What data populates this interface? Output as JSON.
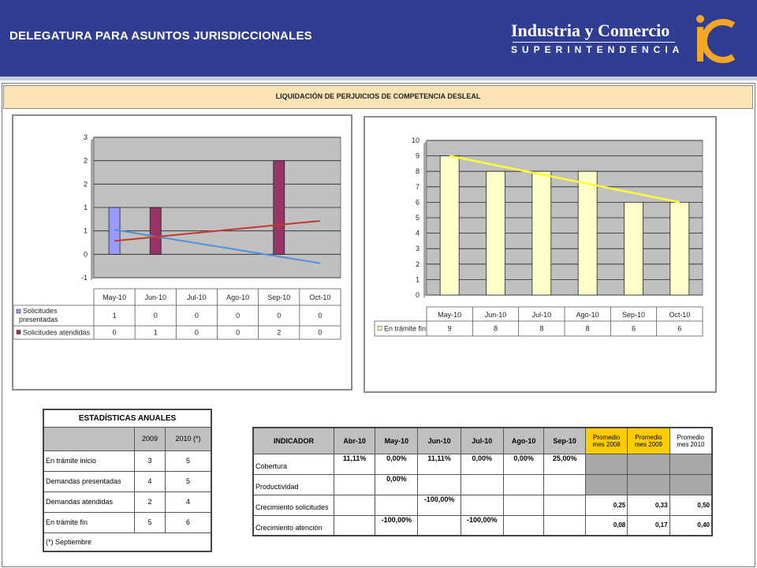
{
  "header": {
    "title": "DELEGATURA PARA ASUNTOS JURISDICCIONALES",
    "brand_line1": "Industria y Comercio",
    "brand_line2": "SUPERINTENDENCIA"
  },
  "banner_title": "LIQUIDACIÓN DE PERJUICIOS DE COMPETENCIA DESLEAL",
  "colors": {
    "header_bg": "#2f3d92",
    "plot_bg": "#c0c0c0",
    "banner_bg": "#fde4b5",
    "series_blue": "#9999ff",
    "series_maroon": "#993366",
    "series_cream": "#ffffcc",
    "trend_yellow": "#ffff33",
    "highlight": "#ffcc00"
  },
  "chart_data": [
    {
      "type": "bar",
      "categories": [
        "May-10",
        "Jun-10",
        "Jul-10",
        "Ago-10",
        "Sep-10",
        "Oct-10"
      ],
      "series": [
        {
          "name": "Solicitudes presentadas",
          "values": [
            1,
            0,
            0,
            0,
            0,
            0
          ]
        },
        {
          "name": "Solicitudes atendidas",
          "values": [
            0,
            1,
            0,
            0,
            2,
            0
          ]
        }
      ],
      "y_tick_labels": [
        "3",
        "2",
        "2",
        "1",
        "1",
        "0",
        "-1"
      ],
      "ylim": [
        -0.5,
        2.5
      ],
      "trendlines": true,
      "grid": true,
      "legend": "data-table-bottom"
    },
    {
      "type": "bar",
      "categories": [
        "May-10",
        "Jun-10",
        "Jul-10",
        "Ago-10",
        "Sep-10",
        "Oct-10"
      ],
      "series": [
        {
          "name": "En trámite fin",
          "values": [
            9,
            8,
            8,
            8,
            6,
            6
          ]
        }
      ],
      "y_tick_labels": [
        "10",
        "9",
        "8",
        "7",
        "6",
        "5",
        "4",
        "3",
        "2",
        "1",
        "0"
      ],
      "ylim": [
        0,
        10
      ],
      "trendline": true,
      "grid": true,
      "legend": "data-table-bottom"
    }
  ],
  "annual": {
    "title": "ESTADÍSTICAS ANUALES",
    "col1": "2009",
    "col2": "2010 (*)",
    "rows": [
      {
        "label": "En trámite inicio",
        "v1": "3",
        "v2": "5"
      },
      {
        "label": "Demandas presentadas",
        "v1": "4",
        "v2": "5"
      },
      {
        "label": "Demandas atendidas",
        "v1": "2",
        "v2": "4"
      },
      {
        "label": "En trámite fin",
        "v1": "5",
        "v2": "6"
      }
    ],
    "footnote": "(*) Septiembre"
  },
  "indicators": {
    "headers": [
      "INDICADOR",
      "Abr-10",
      "May-10",
      "Jun-10",
      "Jul-10",
      "Ago-10",
      "Sep-10"
    ],
    "prom_2008": "Promedio mes 2008",
    "prom_2009": "Promedio mes 2009",
    "prom_2010": "Promedio mes 2010",
    "rows": [
      {
        "label": "Cobertura",
        "c": [
          "11,11%",
          "0,00%",
          "11,11%",
          "0,00%",
          "0,00%",
          "25,00%"
        ],
        "p": [
          "",
          "",
          ""
        ]
      },
      {
        "label": "Productividad",
        "c": [
          "",
          "0,00%",
          "",
          "",
          "",
          ""
        ],
        "p": [
          "",
          "",
          ""
        ]
      },
      {
        "label": "Crecimiento solicitudes",
        "c": [
          "",
          "",
          "-100,00%",
          "",
          "",
          ""
        ],
        "p": [
          "0,25",
          "0,33",
          "0,50"
        ]
      },
      {
        "label": "Crecimiento atención",
        "c": [
          "",
          "-100,00%",
          "",
          "-100,00%",
          "",
          ""
        ],
        "p": [
          "0,08",
          "0,17",
          "0,40"
        ]
      }
    ]
  }
}
